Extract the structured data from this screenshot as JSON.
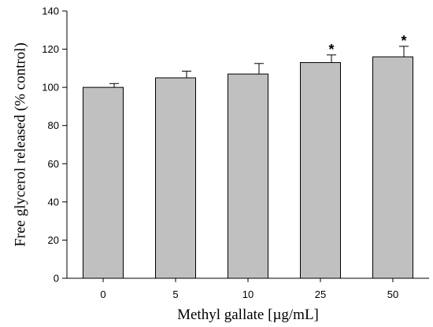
{
  "chart_data": {
    "type": "bar",
    "title": "",
    "xlabel": "Methyl gallate [µg/mL]",
    "ylabel": "Free glycerol released (% control)",
    "categories": [
      "0",
      "5",
      "10",
      "25",
      "50"
    ],
    "values": [
      100,
      105,
      107,
      113,
      116
    ],
    "errors": [
      2,
      3.5,
      5.5,
      4,
      5.5
    ],
    "significance": [
      "",
      "",
      "",
      "*",
      "*"
    ],
    "ylim": [
      0,
      140
    ],
    "yticks": [
      0,
      20,
      40,
      60,
      80,
      100,
      120,
      140
    ],
    "bar_color": "#c0c0c0",
    "grid": false,
    "legend": "none"
  }
}
